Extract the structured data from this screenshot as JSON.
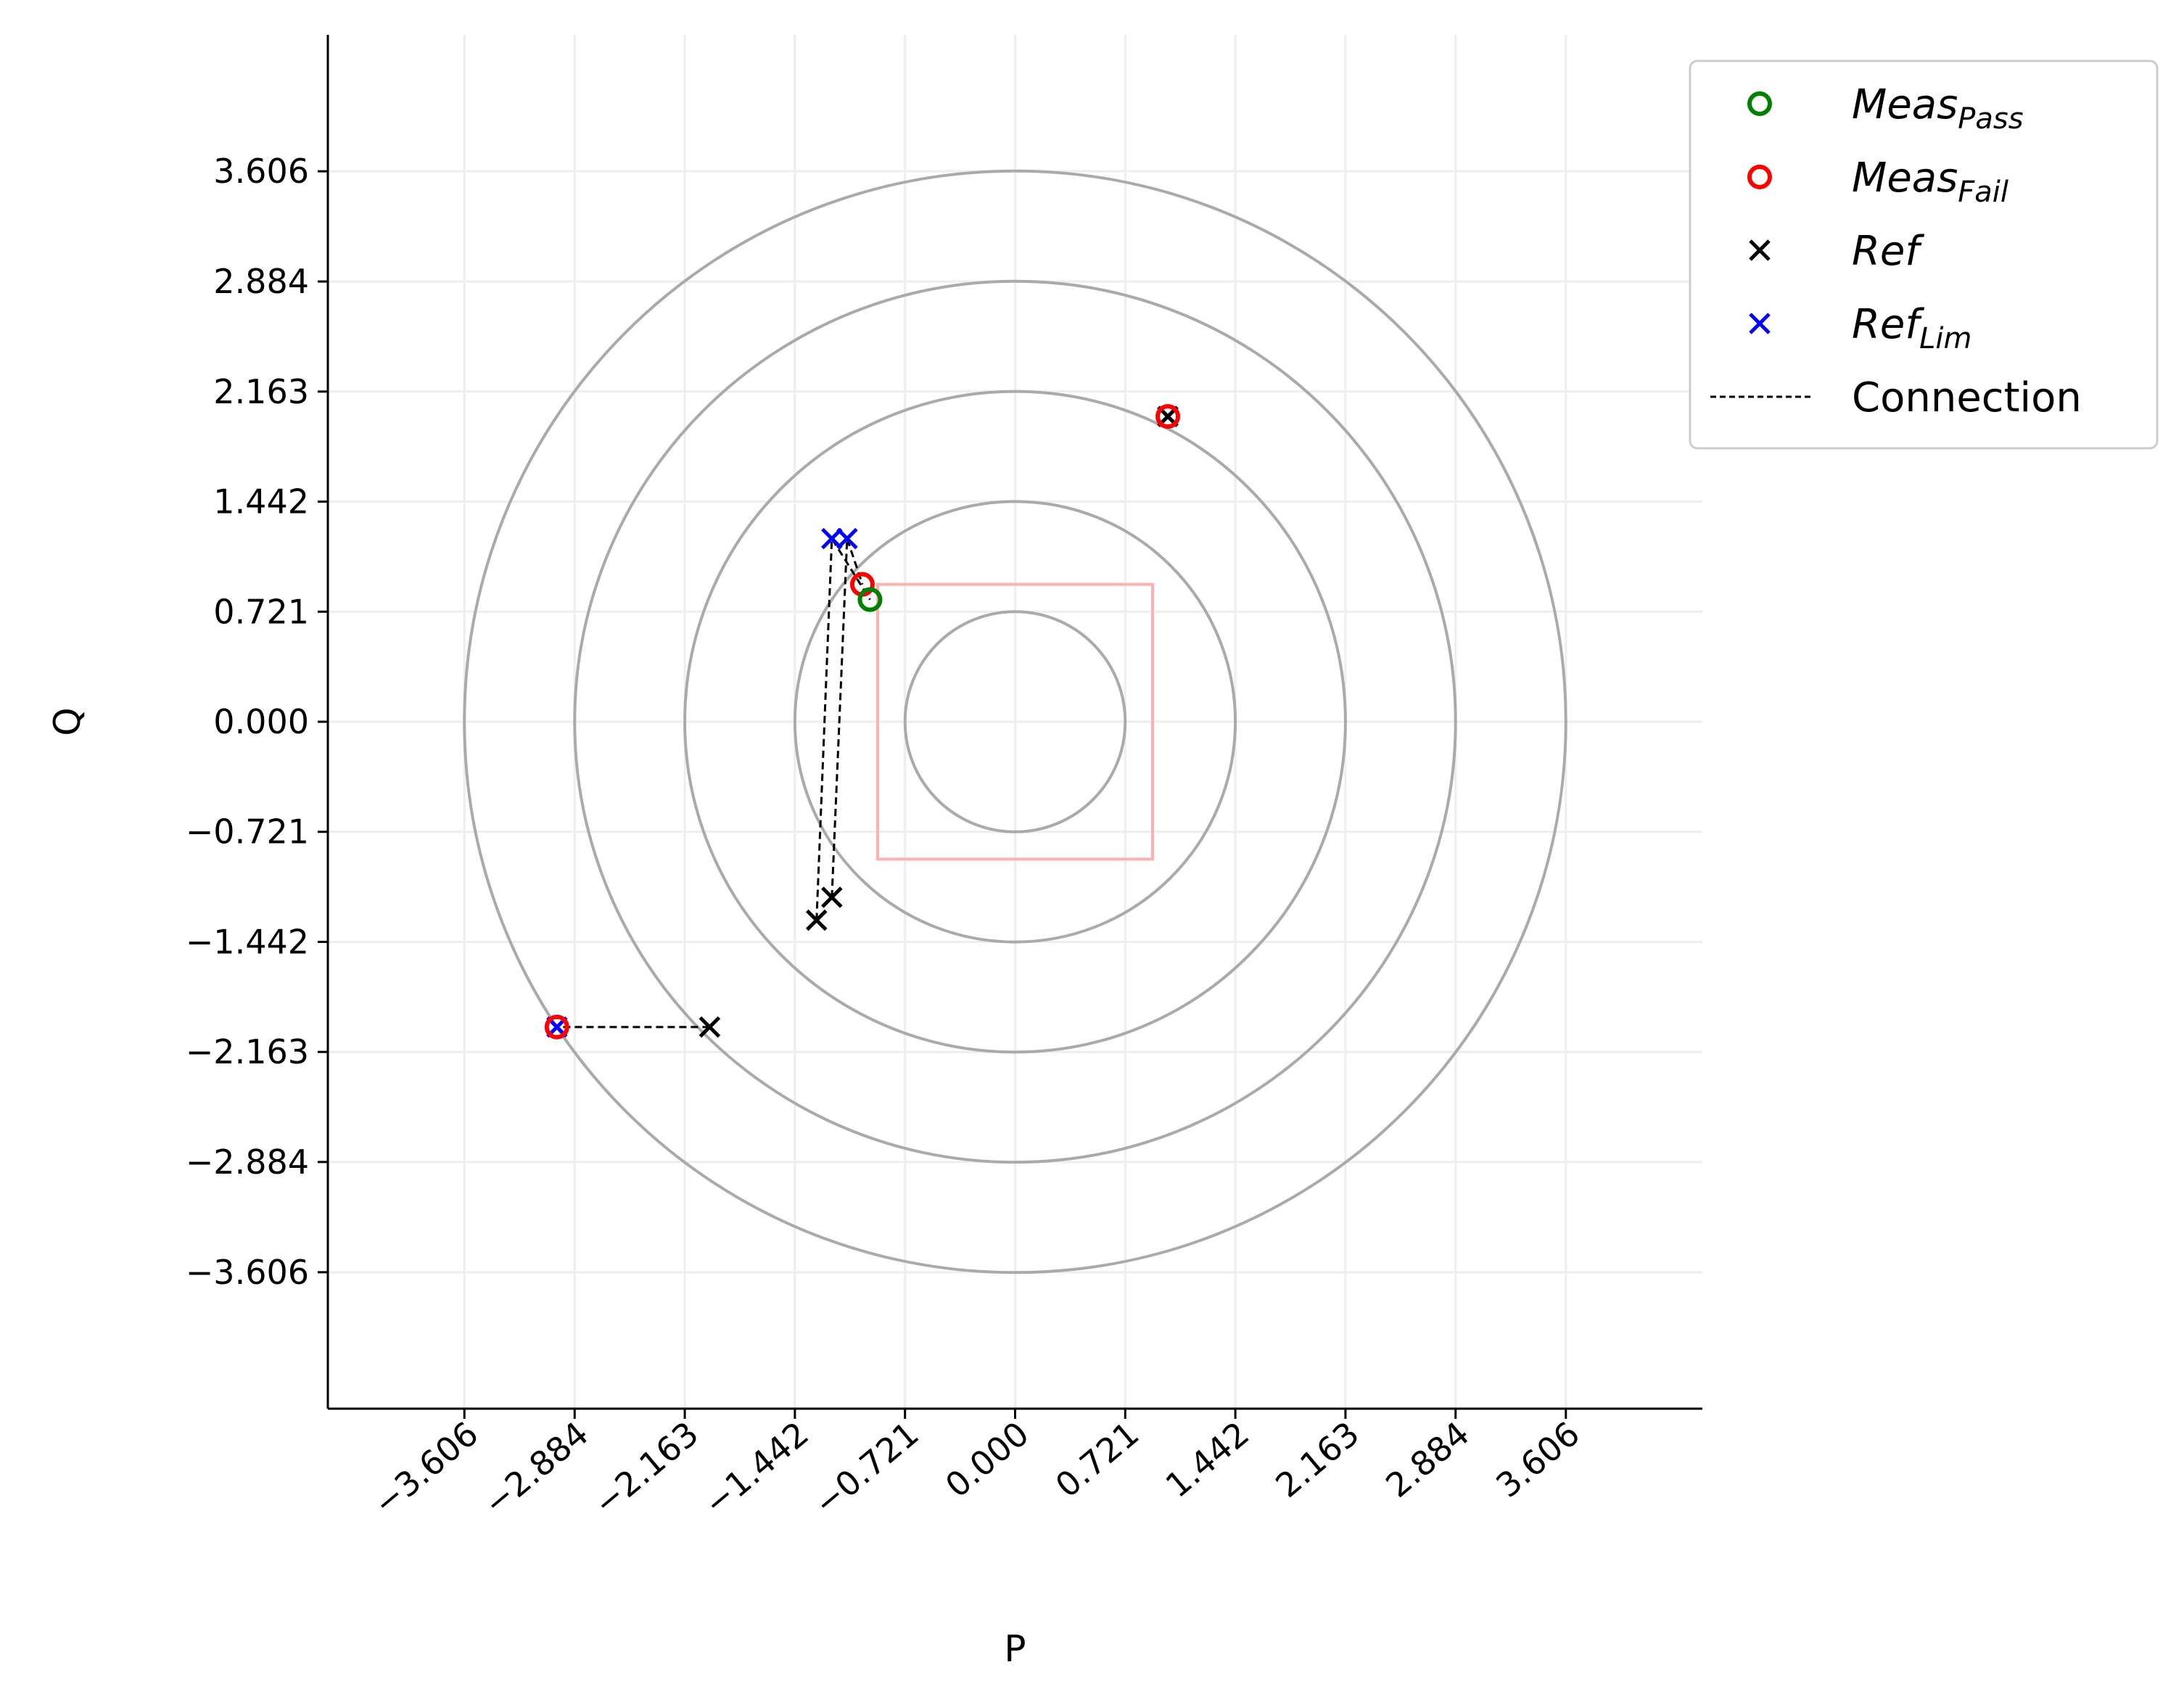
{
  "chart_data": {
    "type": "scatter",
    "xlabel": "P",
    "ylabel": "Q",
    "xlim": [
      -4.5,
      4.5
    ],
    "ylim": [
      -4.5,
      4.5
    ],
    "grid": true,
    "legend_placement": "outside-top-right",
    "xticks": [
      "−3.606",
      "−2.884",
      "−2.163",
      "−1.442",
      "−0.721",
      "0.000",
      "0.721",
      "1.442",
      "2.163",
      "2.884",
      "3.606"
    ],
    "xtick_values": [
      -3.606,
      -2.884,
      -2.163,
      -1.442,
      -0.721,
      0,
      0.721,
      1.442,
      2.163,
      2.884,
      3.606
    ],
    "yticks": [
      "3.606",
      "2.884",
      "2.163",
      "1.442",
      "0.721",
      "0.000",
      "−0.721",
      "−1.442",
      "−2.163",
      "−2.884",
      "−3.606"
    ],
    "ytick_values": [
      3.606,
      2.884,
      2.163,
      1.442,
      0.721,
      0,
      -0.721,
      -1.442,
      -2.163,
      -2.884,
      -3.606
    ],
    "circles": {
      "radii": [
        0.721,
        1.442,
        2.163,
        2.884,
        3.606
      ],
      "color": "#aaaaaa"
    },
    "limit_box": {
      "p": [
        -0.9,
        0.9
      ],
      "q": [
        -0.9,
        0.9
      ],
      "color": "#ffb0b0"
    },
    "series": [
      {
        "name": "Meas",
        "sub": "Pass",
        "marker": "circle",
        "color": "#008000",
        "points": [
          [
            -0.95,
            0.8
          ]
        ]
      },
      {
        "name": "Meas",
        "sub": "Fail",
        "marker": "circle",
        "color": "#ff0000",
        "points": [
          [
            -1.0,
            0.9
          ],
          [
            1.0,
            2.0
          ],
          [
            -3.0,
            -2.0
          ]
        ]
      },
      {
        "name": "Ref",
        "sub": "",
        "marker": "x",
        "color": "#000000",
        "points": [
          [
            -1.3,
            -1.3
          ],
          [
            -1.2,
            -1.15
          ],
          [
            -2.0,
            -2.0
          ],
          [
            1.0,
            2.0
          ]
        ]
      },
      {
        "name": "Ref",
        "sub": "Lim",
        "marker": "x",
        "color": "#0000ff",
        "points": [
          [
            -1.2,
            1.2
          ],
          [
            -1.1,
            1.2
          ],
          [
            1.0,
            2.0
          ],
          [
            -3.0,
            -2.0
          ]
        ]
      }
    ],
    "connections": {
      "name": "Connection",
      "color": "#000000",
      "paths": [
        [
          [
            -1.3,
            -1.3
          ],
          [
            -1.2,
            1.2
          ],
          [
            -0.95,
            0.8
          ]
        ],
        [
          [
            -1.2,
            -1.15
          ],
          [
            -1.1,
            1.2
          ],
          [
            -1.0,
            0.9
          ]
        ],
        [
          [
            -2.0,
            -2.0
          ],
          [
            -3.0,
            -2.0
          ]
        ],
        [
          [
            1.0,
            2.0
          ],
          [
            1.0,
            2.0
          ]
        ]
      ]
    }
  }
}
